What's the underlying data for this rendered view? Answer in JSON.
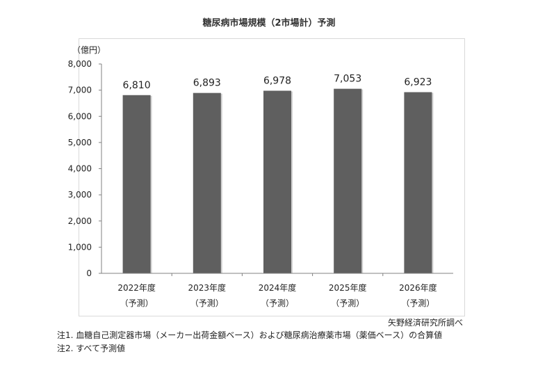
{
  "title": "糖尿病市場規模（2市場計）予測",
  "source": "矢野経済研究所調べ",
  "notes": [
    "注1.  血糖自己測定器市場（メーカー出荷金額ベース）および糖尿病治療薬市場（薬価ベース）の合算値",
    "注2.  すべて予測値"
  ],
  "chart_data": {
    "type": "bar",
    "title": "糖尿病市場規模（2市場計）予測",
    "ylabel": "（億円）",
    "xlabel": "",
    "categories": [
      {
        "year": "2022年度",
        "sub": "（予測）"
      },
      {
        "year": "2023年度",
        "sub": "（予測）"
      },
      {
        "year": "2024年度",
        "sub": "（予測）"
      },
      {
        "year": "2025年度",
        "sub": "（予測）"
      },
      {
        "year": "2026年度",
        "sub": "（予測）"
      }
    ],
    "values": [
      6810,
      6893,
      6978,
      7053,
      6923
    ],
    "value_labels": [
      "6,810",
      "6,893",
      "6,978",
      "7,053",
      "6,923"
    ],
    "ylim": [
      0,
      8000
    ],
    "yticks": [
      0,
      1000,
      2000,
      3000,
      4000,
      5000,
      6000,
      7000,
      8000
    ],
    "ytick_labels": [
      "0",
      "1,000",
      "2,000",
      "3,000",
      "4,000",
      "5,000",
      "6,000",
      "7,000",
      "8,000"
    ],
    "bar_color": "#5f5f5f",
    "grid": false,
    "legend": "none"
  }
}
